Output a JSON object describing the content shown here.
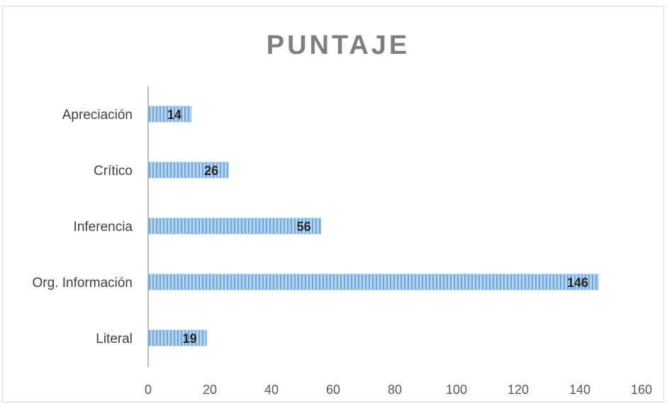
{
  "chart_data": {
    "type": "bar",
    "orientation": "horizontal",
    "title": "PUNTAJE",
    "categories": [
      "Apreciación",
      "Crítico",
      "Inferencia",
      "Org. Información",
      "Literal"
    ],
    "values": [
      14,
      26,
      56,
      146,
      19
    ],
    "x_ticks": [
      0,
      20,
      40,
      60,
      80,
      100,
      120,
      140,
      160
    ],
    "xlim": [
      0,
      160
    ],
    "grid": false,
    "legend": "none",
    "data_labels": true,
    "colors": {
      "bar": "#9dc3e6",
      "bar_stripe": "#5b9bd5",
      "axis": "#a6a6a6",
      "title": "#7f7f7f"
    }
  }
}
